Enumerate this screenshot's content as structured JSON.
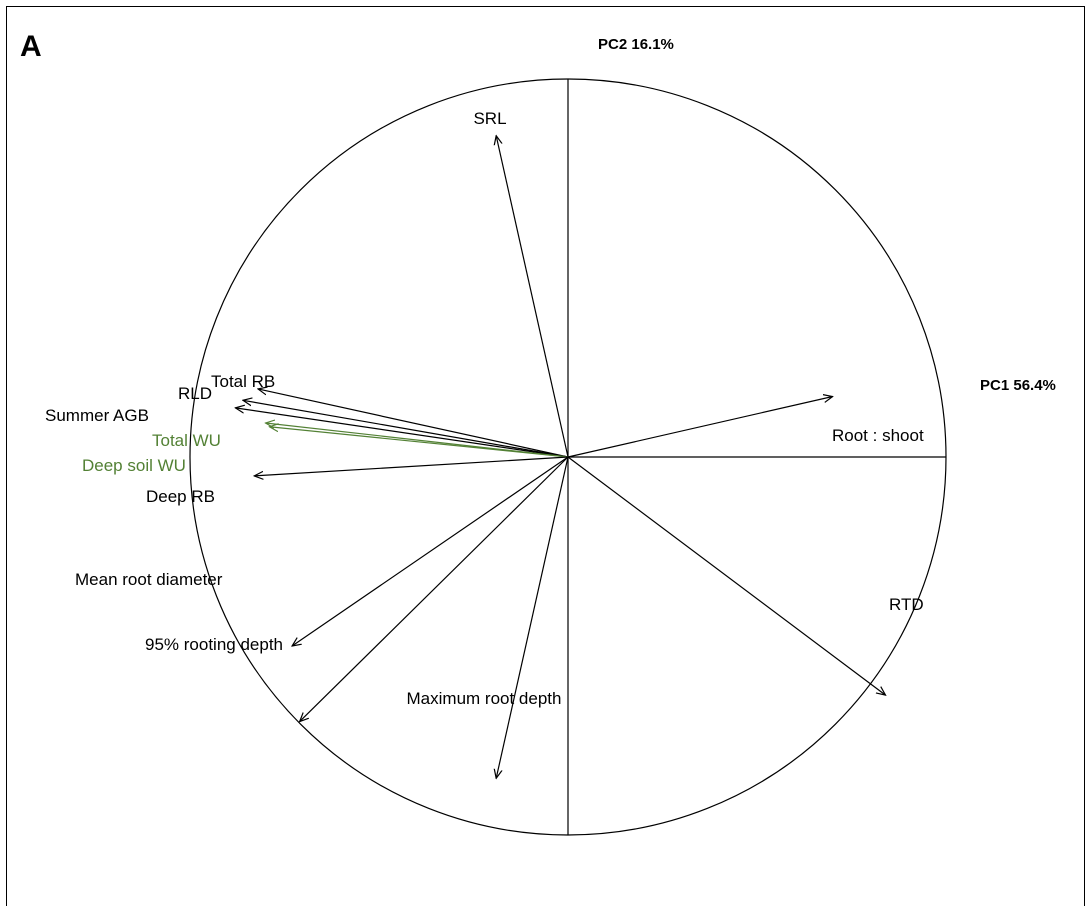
{
  "panel_label": "A",
  "chart_data": {
    "type": "scatter",
    "subtype": "pca-correlation-circle",
    "xlabel": "PC1 56.4%",
    "ylabel": "PC2 16.1%",
    "xlim": [
      -1,
      1
    ],
    "ylim": [
      -1,
      1
    ],
    "grid": false,
    "legend": "none",
    "colors": {
      "default": "#000000",
      "highlight": "#538135"
    },
    "vectors": [
      {
        "label": "SRL",
        "x": -0.19,
        "y": 0.85,
        "color": "#000000"
      },
      {
        "label": "Total RB",
        "x": -0.82,
        "y": 0.18,
        "color": "#000000"
      },
      {
        "label": "RLD",
        "x": -0.86,
        "y": 0.15,
        "color": "#000000"
      },
      {
        "label": "Summer AGB",
        "x": -0.88,
        "y": 0.13,
        "color": "#000000"
      },
      {
        "label": "Total WU",
        "x": -0.8,
        "y": 0.09,
        "color": "#538135"
      },
      {
        "label": "Deep soil WU",
        "x": -0.79,
        "y": 0.08,
        "color": "#538135"
      },
      {
        "label": "Deep RB",
        "x": -0.83,
        "y": -0.05,
        "color": "#000000"
      },
      {
        "label": "Root : shoot",
        "x": 0.7,
        "y": 0.16,
        "color": "#000000"
      },
      {
        "label": "Mean root diameter",
        "x": -0.73,
        "y": -0.5,
        "color": "#000000"
      },
      {
        "label": "95% rooting depth",
        "x": -0.71,
        "y": -0.7,
        "color": "#000000"
      },
      {
        "label": "RTD",
        "x": 0.84,
        "y": -0.63,
        "color": "#000000"
      },
      {
        "label": "Maximum root depth",
        "x": -0.19,
        "y": -0.85,
        "color": "#000000"
      }
    ]
  }
}
